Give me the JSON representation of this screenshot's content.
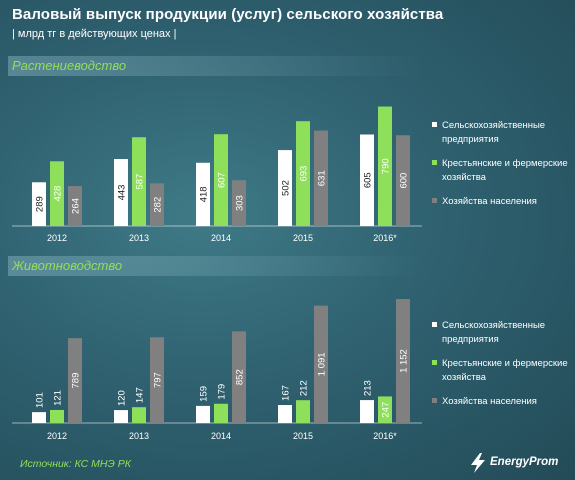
{
  "title": "Валовый выпуск продукции (услуг) сельского хозяйства",
  "subtitle": "| млрд тг в действующих ценах |",
  "source": "Источник: КС МНЭ РК",
  "logo_text": "EnergyProm",
  "colors": {
    "white_series": "#ffffff",
    "green_series": "#8ee05a",
    "gray_series": "#808080",
    "section_title": "#8ee05a"
  },
  "chart_data": [
    {
      "type": "bar",
      "title": "Растениеводство",
      "categories": [
        "2012",
        "2013",
        "2014",
        "2015",
        "2016*"
      ],
      "series": [
        {
          "name": "Сельскохозяйственные предприятия",
          "values": [
            289,
            443,
            418,
            502,
            605
          ]
        },
        {
          "name": "Крестьянские и фермерские хозяйства",
          "values": [
            428,
            587,
            607,
            693,
            790
          ]
        },
        {
          "name": "Хозяйства населения",
          "values": [
            264,
            282,
            303,
            631,
            600
          ]
        }
      ],
      "ylim": [
        0,
        820
      ],
      "legend": "right",
      "grid": false
    },
    {
      "type": "bar",
      "title": "Животноводство",
      "categories": [
        "2012",
        "2013",
        "2014",
        "2015",
        "2016*"
      ],
      "series": [
        {
          "name": "Сельскохозяйственные предприятия",
          "values": [
            101,
            120,
            159,
            167,
            213
          ]
        },
        {
          "name": "Крестьянские и фермерские хозяйства",
          "values": [
            121,
            147,
            179,
            212,
            247
          ]
        },
        {
          "name": "Хозяйства населения",
          "values": [
            789,
            797,
            852,
            1091,
            1152
          ]
        }
      ],
      "value_labels": [
        [
          "101",
          "120",
          "159",
          "167",
          "213"
        ],
        [
          "121",
          "147",
          "179",
          "212",
          "247"
        ],
        [
          "789",
          "797",
          "852",
          "1 091",
          "1 152"
        ]
      ],
      "ylim": [
        0,
        1190
      ],
      "legend": "right",
      "grid": false
    }
  ]
}
